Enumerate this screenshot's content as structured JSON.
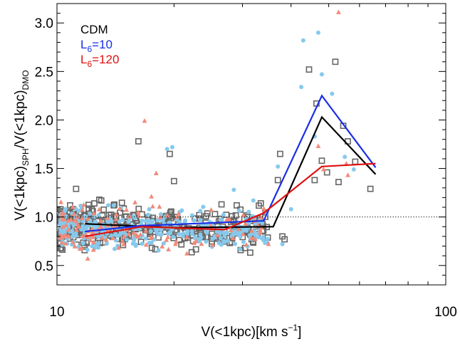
{
  "chart_data": {
    "type": "scatter",
    "title": "",
    "xlabel": {
      "main": "V(<1kpc)[km s",
      "sup": "−1",
      "tail": "]"
    },
    "ylabel": {
      "a": "V(<1kpc)",
      "a_sub": "SPH",
      "b": "/V(<1kpc)",
      "b_sub": "DMO"
    },
    "xscale": "log",
    "xlim": [
      10,
      100
    ],
    "ylim": [
      0.3,
      3.2
    ],
    "xticks": [
      10,
      100
    ],
    "xtick_labels": [
      "10",
      "100"
    ],
    "yticks": [
      0.5,
      1.0,
      1.5,
      2.0,
      2.5,
      3.0
    ],
    "ytick_labels": [
      "0.5",
      "1.0",
      "1.5",
      "2.0",
      "2.5",
      "3.0"
    ],
    "reference_line": {
      "y": 1.0,
      "style": "dotted"
    },
    "legend": {
      "placement": "top-left",
      "entries": [
        {
          "name": "CDM",
          "sub": "",
          "suffix": "",
          "color": "#000000"
        },
        {
          "name": "L",
          "sub": "6",
          "suffix": "=10",
          "color": "#1a2ee6"
        },
        {
          "name": "L",
          "sub": "6",
          "suffix": "=120",
          "color": "#e01010"
        }
      ]
    },
    "series": [
      {
        "name": "CDM",
        "marker": "open-square",
        "marker_color": "#666666",
        "line_color": "#000000",
        "median": {
          "x": [
            11.8,
            19.8,
            36.0,
            48.0,
            66.0
          ],
          "y": [
            0.93,
            0.89,
            0.9,
            2.03,
            1.44
          ]
        },
        "points": [
          [
            16.2,
            1.78
          ],
          [
            19.5,
            1.65
          ],
          [
            20.0,
            1.37
          ],
          [
            11.2,
            1.29
          ],
          [
            37.0,
            1.38
          ],
          [
            37.5,
            1.65
          ],
          [
            44.5,
            2.52
          ],
          [
            46.5,
            2.17
          ],
          [
            52.0,
            2.6
          ],
          [
            54.5,
            1.94
          ],
          [
            56.0,
            1.78
          ],
          [
            58.5,
            1.57
          ],
          [
            46.0,
            1.38
          ],
          [
            48.0,
            1.58
          ],
          [
            49.5,
            1.46
          ],
          [
            53.0,
            1.36
          ],
          [
            64.0,
            1.29
          ],
          [
            38.5,
            0.77
          ],
          [
            38.0,
            0.8
          ],
          [
            26.5,
            1.13
          ],
          [
            14.0,
            1.12
          ],
          [
            13.0,
            1.17
          ],
          [
            29.0,
            1.12
          ],
          [
            31.0,
            1.0
          ]
        ],
        "dense": {
          "count": 340,
          "x_range": [
            10.2,
            35.0
          ],
          "y_mean": 0.9,
          "y_spread": 0.21
        }
      },
      {
        "name": "L6=10",
        "marker": "filled-circle",
        "marker_color": "#86c9ec",
        "line_color": "#1a2ee6",
        "median": {
          "x": [
            11.8,
            16.5,
            34.0,
            48.0,
            66.0
          ],
          "y": [
            0.85,
            0.91,
            0.96,
            2.25,
            1.51
          ]
        },
        "points": [
          [
            19.8,
            1.72
          ],
          [
            19.2,
            1.7
          ],
          [
            47.0,
            2.9
          ],
          [
            48.0,
            2.47
          ],
          [
            51.0,
            2.27
          ],
          [
            43.0,
            2.82
          ],
          [
            42.5,
            2.34
          ],
          [
            46.0,
            1.83
          ],
          [
            55.0,
            1.62
          ],
          [
            58.0,
            1.49
          ],
          [
            37.0,
            1.52
          ],
          [
            28.5,
            1.28
          ],
          [
            32.0,
            1.17
          ],
          [
            38.0,
            0.72
          ],
          [
            40.0,
            1.08
          ]
        ],
        "dense": {
          "count": 340,
          "x_range": [
            10.2,
            35.0
          ],
          "y_mean": 0.87,
          "y_spread": 0.2
        }
      },
      {
        "name": "L6=120",
        "marker": "filled-triangle",
        "marker_color": "#f18a78",
        "line_color": "#e01010",
        "median": {
          "x": [
            11.8,
            16.5,
            27.0,
            34.0,
            48.0,
            66.0
          ],
          "y": [
            0.8,
            0.9,
            0.87,
            1.04,
            1.52,
            1.55
          ]
        },
        "points": [
          [
            16.8,
            1.99
          ],
          [
            53.0,
            3.11
          ],
          [
            18.0,
            1.45
          ],
          [
            14.5,
            1.09
          ],
          [
            47.0,
            1.73
          ],
          [
            55.5,
            1.55
          ],
          [
            48.5,
            1.49
          ],
          [
            56.0,
            1.43
          ],
          [
            35.0,
            0.72
          ],
          [
            22.5,
            0.73
          ],
          [
            12.0,
            0.57
          ],
          [
            17.5,
            1.21
          ]
        ],
        "dense": {
          "count": 130,
          "x_range": [
            10.2,
            35.0
          ],
          "y_mean": 0.88,
          "y_spread": 0.22
        }
      }
    ]
  }
}
